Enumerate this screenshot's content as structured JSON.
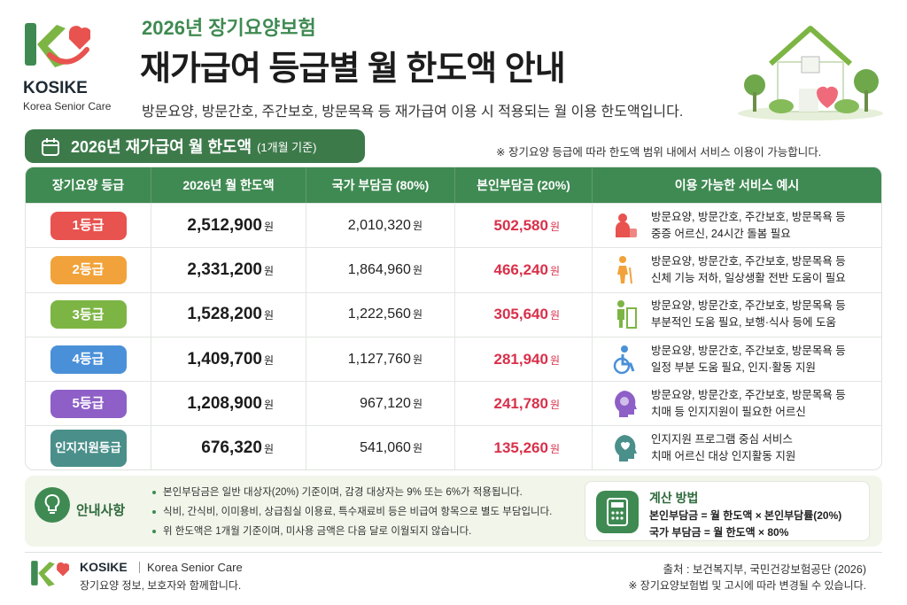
{
  "brand": {
    "name": "KOSIKE",
    "sub": "Korea Senior Care"
  },
  "header": {
    "kicker": "2026년 장기요양보험",
    "title": "재가급여 등급별 월 한도액 안내",
    "subtitle": "방문요양, 방문간호, 주간보호, 방문목욕 등 재가급여 이용 시 적용되는 월 이용 한도액입니다."
  },
  "section": {
    "title": "2026년 재가급여 월 한도액",
    "note": "(1개월 기준)",
    "remark": "※ 장기요양 등급에 따라 한도액 범위 내에서 서비스 이용이 가능합니다."
  },
  "table": {
    "columns": [
      "장기요양 등급",
      "2026년 월 한도액",
      "국가 부담금 (80%)",
      "본인부담금 (20%)",
      "이용 가능한 서비스 예시"
    ],
    "unit": "원",
    "rows": [
      {
        "grade": "1등급",
        "color": "#e8524f",
        "limit": "2,512,900",
        "state": "2,010,320",
        "self": "502,580",
        "services": [
          "방문요양, 방문간호, 주간보호, 방문목욕 등",
          "중증 어르신, 24시간 돌봄 필요"
        ]
      },
      {
        "grade": "2등급",
        "color": "#f2a23a",
        "limit": "2,331,200",
        "state": "1,864,960",
        "self": "466,240",
        "services": [
          "방문요양, 방문간호, 주간보호, 방문목욕 등",
          "신체 기능 저하, 일상생활 전반 도움이 필요"
        ]
      },
      {
        "grade": "3등급",
        "color": "#7db544",
        "limit": "1,528,200",
        "state": "1,222,560",
        "self": "305,640",
        "services": [
          "방문요양, 방문간호, 주간보호, 방문목욕 등",
          "부분적인 도움 필요, 보행·식사 등에 도움"
        ]
      },
      {
        "grade": "4등급",
        "color": "#4a90d9",
        "limit": "1,409,700",
        "state": "1,127,760",
        "self": "281,940",
        "services": [
          "방문요양, 방문간호, 주간보호, 방문목욕 등",
          "일정 부분 도움 필요, 인지·활동 지원"
        ]
      },
      {
        "grade": "5등급",
        "color": "#8e5fc7",
        "limit": "1,208,900",
        "state": "967,120",
        "self": "241,780",
        "services": [
          "방문요양, 방문간호, 주간보호, 방문목욕 등",
          "치매 등 인지지원이 필요한 어르신"
        ]
      },
      {
        "grade": "인지지원\n등급",
        "color": "#4a8f8a",
        "limit": "676,320",
        "state": "541,060",
        "self": "135,260",
        "services": [
          "인지지원 프로그램 중심 서비스",
          "치매 어르신 대상 인지활동 지원"
        ]
      }
    ]
  },
  "notice": {
    "title": "안내사항",
    "items": [
      "본인부담금은 일반 대상자(20%) 기준이며, 감경 대상자는 9% 또는 6%가 적용됩니다.",
      "식비, 간식비, 이미용비, 상급침실 이용료, 특수재료비 등은 비급여 항목으로 별도 부담입니다.",
      "위 한도액은 1개월 기준이며, 미사용 금액은 다음 달로 이월되지 않습니다."
    ]
  },
  "calc": {
    "title": "계산 방법",
    "lines": [
      "본인부담금 = 월 한도액 × 본인부담률(20%)",
      "국가 부담금 = 월 한도액 × 80%"
    ]
  },
  "footer": {
    "name": "KOSIKE",
    "sub": "Korea Senior Care",
    "tagline": "장기요양 정보, 보호자와 함께합니다.",
    "source": "출처 : 보건복지부, 국민건강보험공단 (2026)",
    "note": "※ 장기요양보험법 및 고시에 따라 변경될 수 있습니다."
  }
}
